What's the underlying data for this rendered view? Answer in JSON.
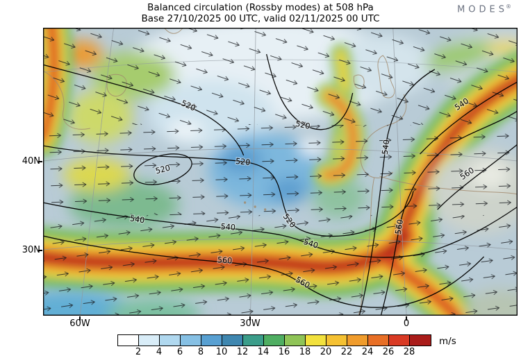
{
  "header": {
    "title_line1": "Balanced circulation (Rossby modes) at 508 hPa",
    "title_line2": "Base 27/10/2025 00 UTC, valid 02/11/2025 00 UTC",
    "logo_text": "MODES",
    "logo_reg": "®"
  },
  "map": {
    "lat_labels": [
      "40N",
      "30N"
    ],
    "lon_labels": [
      "60W",
      "30W",
      "0"
    ],
    "contour_labels": [
      "520",
      "520",
      "520",
      "520",
      "520",
      "540",
      "540",
      "540",
      "540",
      "540",
      "560",
      "560",
      "560",
      "560"
    ]
  },
  "colorbar": {
    "ticks": [
      "2",
      "4",
      "6",
      "8",
      "10",
      "12",
      "14",
      "16",
      "18",
      "20",
      "22",
      "24",
      "26",
      "28"
    ],
    "colors": [
      "#ffffff",
      "#d9edf8",
      "#b0d8ef",
      "#86c0e4",
      "#58a0d2",
      "#3f87b0",
      "#3b9d8a",
      "#4fae62",
      "#8fc457",
      "#f2e13d",
      "#f5c132",
      "#f09c2c",
      "#e86f26",
      "#d93a24",
      "#aa1c1a"
    ],
    "unit": "m/s"
  },
  "chart_data": {
    "type": "heatmap",
    "title": "Balanced circulation (Rossby modes) at 508 hPa",
    "subtitle": "Base 27/10/2025 00 UTC, valid 02/11/2025 00 UTC",
    "variable": "balanced (Rossby mode) wind speed with flow arrows and height contours",
    "level_hPa": 508,
    "units": "m/s",
    "colorbar_ticks": [
      2,
      4,
      6,
      8,
      10,
      12,
      14,
      16,
      18,
      20,
      22,
      24,
      26,
      28
    ],
    "colorbar_colors": [
      "#ffffff",
      "#d9edf8",
      "#b0d8ef",
      "#86c0e4",
      "#58a0d2",
      "#3f87b0",
      "#3b9d8a",
      "#4fae62",
      "#8fc457",
      "#f2e13d",
      "#f5c132",
      "#f09c2c",
      "#e86f26",
      "#d93a24",
      "#aa1c1a"
    ],
    "x_axis": {
      "label_type": "longitude",
      "ticks": [
        "60W",
        "30W",
        "0"
      ]
    },
    "y_axis": {
      "label_type": "latitude",
      "ticks": [
        "40N",
        "30N"
      ]
    },
    "contour_levels": [
      520,
      540,
      560
    ],
    "contour_label_instances": [
      "520",
      "520",
      "520",
      "520",
      "520",
      "540",
      "540",
      "540",
      "540",
      "540",
      "560",
      "560",
      "560",
      "560"
    ],
    "features": [
      "strong zonal jet (24-28 m/s) across lower third from 60W toward 0",
      "jet branch turning northeast toward top-right corner",
      "weak-wind (white/blue) region over north-central area",
      "closed 520 contour cell near 50W/38N",
      "calm grey region near right-middle (Iberia/NW Africa sector)"
    ]
  }
}
